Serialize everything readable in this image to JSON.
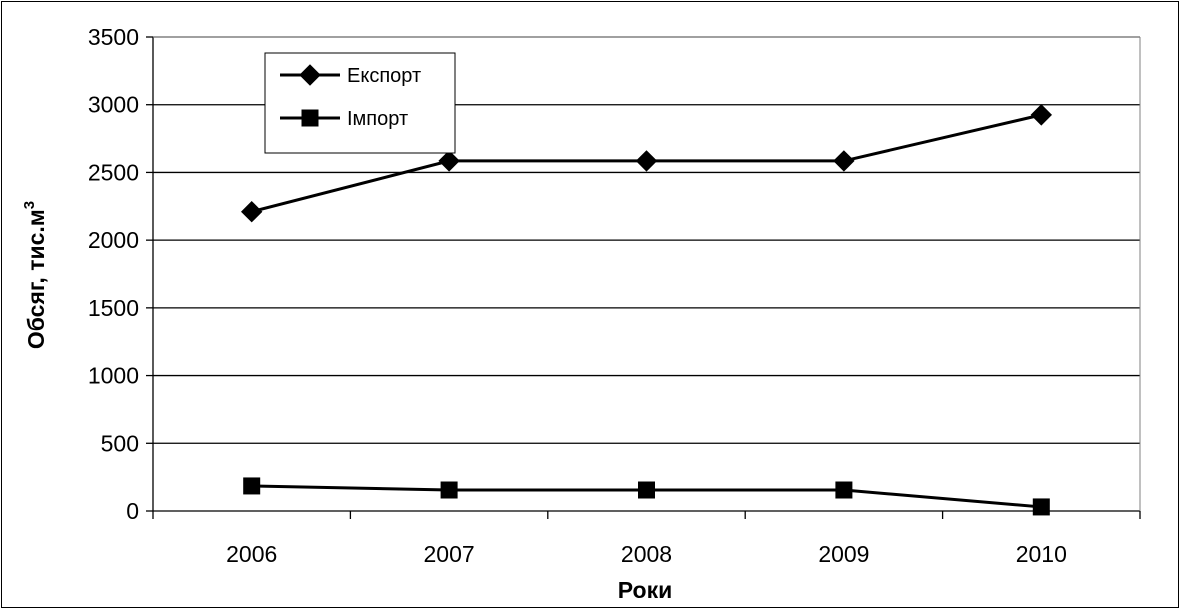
{
  "chart_data": {
    "type": "line",
    "xlabel": "Роки",
    "ylabel": "Обсяг, тис.м",
    "ylabel_superscript": "3",
    "categories": [
      "2006",
      "2007",
      "2008",
      "2009",
      "2010"
    ],
    "ylim": [
      0,
      3500
    ],
    "yticks": [
      0,
      500,
      1000,
      1500,
      2000,
      2500,
      3000,
      3500
    ],
    "grid": "horizontal",
    "legend_position": "top-left",
    "series": [
      {
        "name": "Експорт",
        "marker": "diamond",
        "values": [
          2210,
          2585,
          2585,
          2585,
          2925
        ]
      },
      {
        "name": "Імпорт",
        "marker": "square",
        "values": [
          185,
          155,
          155,
          155,
          30
        ]
      }
    ],
    "colors": {
      "line": "#000000",
      "grid": "#000000",
      "background": "#ffffff"
    }
  }
}
